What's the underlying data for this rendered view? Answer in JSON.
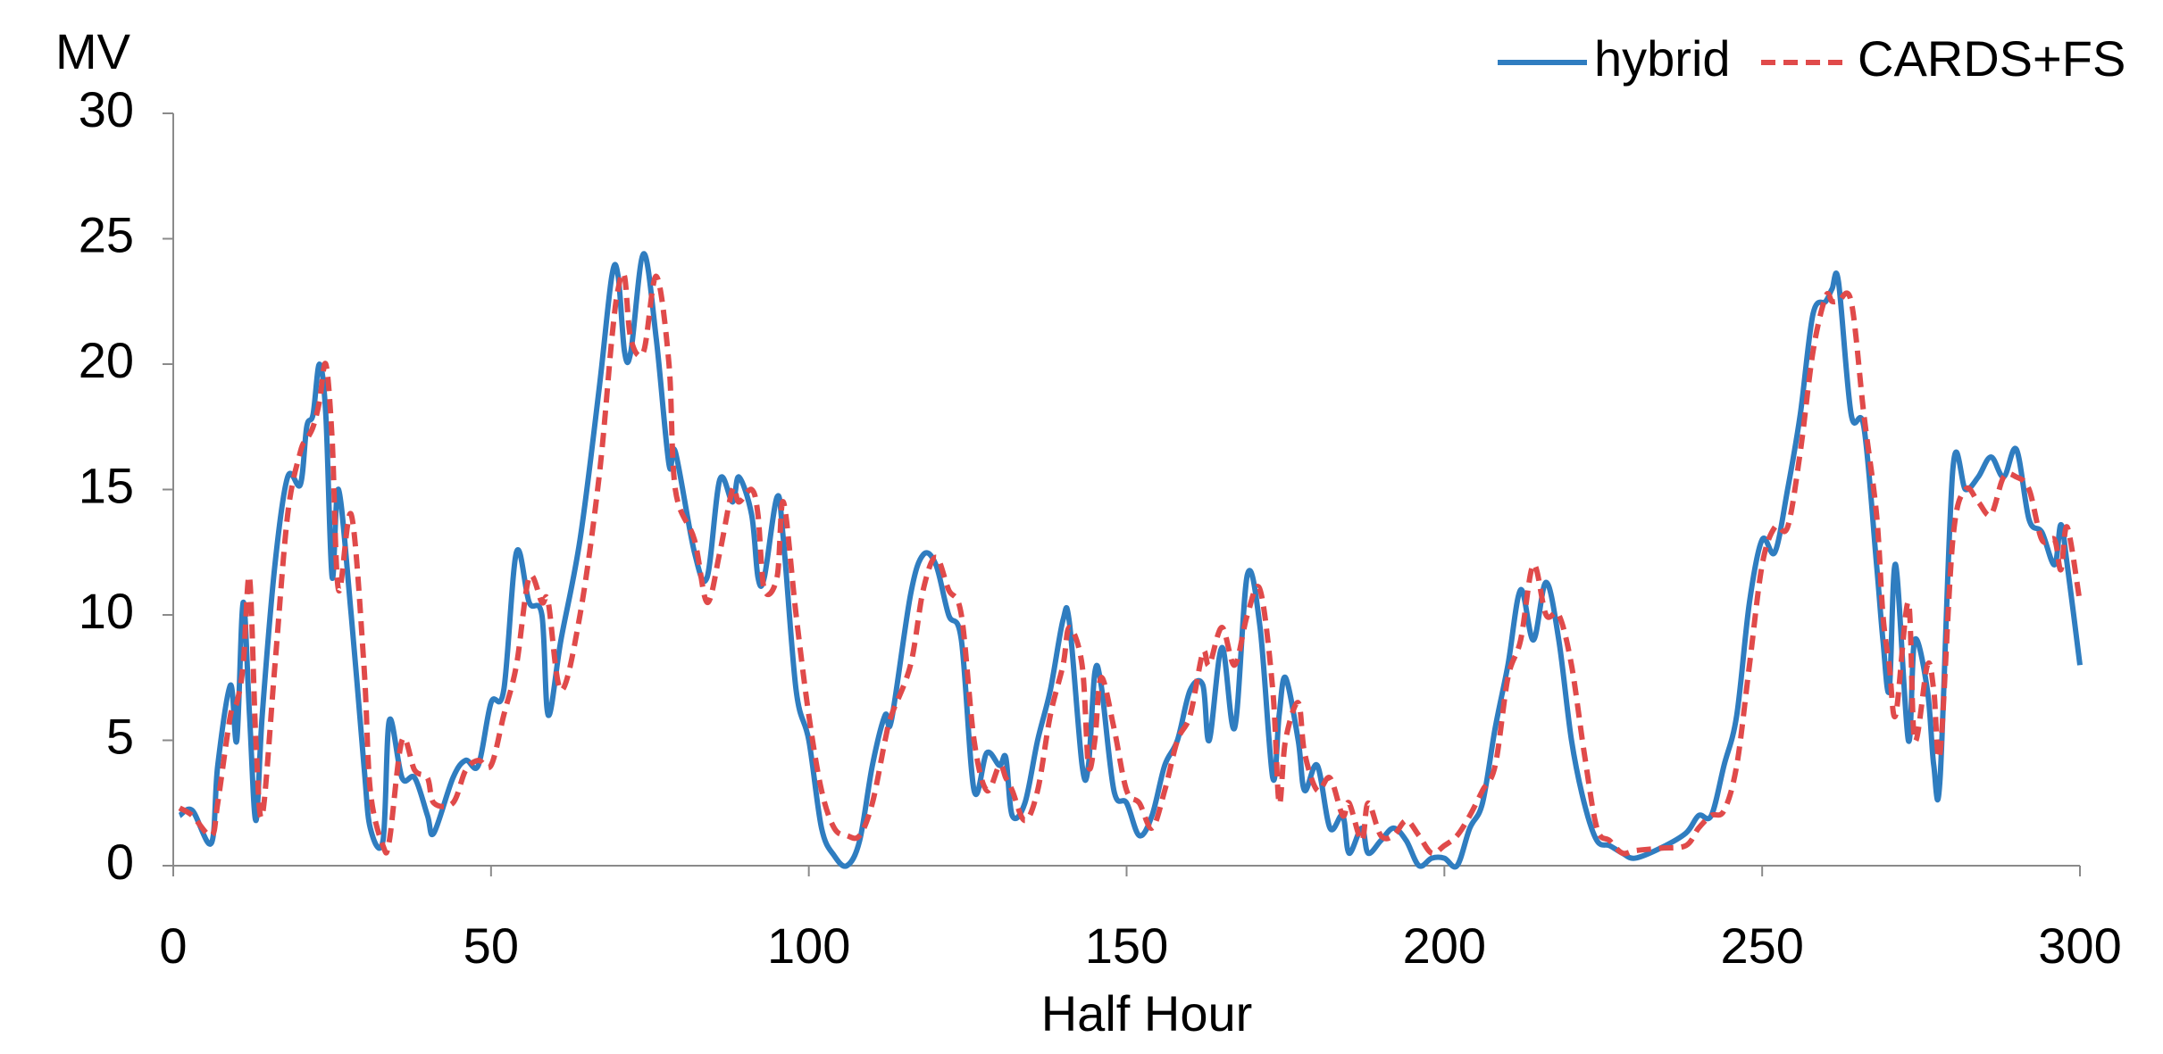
{
  "chart_data": {
    "type": "line",
    "y_label": "MV",
    "x_label": "Half Hour",
    "xlim": [
      0,
      300
    ],
    "xticks": [
      0,
      50,
      100,
      150,
      200,
      250,
      300
    ],
    "ylim": [
      0,
      30
    ],
    "yticks": [
      0,
      5,
      10,
      15,
      20,
      25,
      30
    ],
    "legend": "top-right",
    "x": [
      1,
      3,
      6,
      7,
      9,
      10,
      11,
      12,
      13,
      14,
      16,
      18,
      20,
      21,
      22,
      23,
      24,
      25,
      26,
      28,
      30,
      31,
      33,
      34,
      36,
      38,
      40,
      41,
      44,
      46,
      48,
      50,
      52,
      54,
      56,
      58,
      59,
      61,
      64,
      67,
      69,
      70,
      71,
      72,
      74,
      76,
      78,
      79,
      82,
      84,
      86,
      88,
      89,
      91,
      92,
      93,
      95,
      96,
      98,
      100,
      102,
      104,
      106,
      108,
      110,
      112,
      113,
      116,
      118,
      120,
      122,
      124,
      126,
      128,
      130,
      131,
      132,
      134,
      136,
      138,
      140,
      141,
      143,
      144,
      145,
      146,
      148,
      150,
      152,
      154,
      156,
      158,
      160,
      162,
      163,
      165,
      167,
      169,
      171,
      173,
      174,
      175,
      177,
      178,
      180,
      182,
      184,
      185,
      187,
      188,
      190,
      192,
      194,
      196,
      198,
      200,
      202,
      204,
      206,
      208,
      210,
      212,
      214,
      216,
      218,
      220,
      222,
      224,
      226,
      228,
      230,
      234,
      238,
      240,
      242,
      244,
      246,
      248,
      250,
      252,
      254,
      256,
      258,
      260,
      261,
      262,
      264,
      266,
      268,
      269,
      270,
      271,
      273,
      274,
      276,
      277,
      278,
      280,
      282,
      284,
      286,
      288,
      290,
      292,
      294,
      296,
      297,
      298,
      300
    ],
    "series": [
      {
        "name": "hybrid",
        "color": "#2f7dc0",
        "dashed": false,
        "values": [
          2,
          2.2,
          0.9,
          4,
          7.2,
          5,
          10.5,
          6,
          1.8,
          6,
          12,
          15.5,
          15.2,
          17.5,
          18,
          20,
          18,
          11.5,
          15,
          10,
          4,
          1.5,
          1,
          5.8,
          3.5,
          3.5,
          2,
          1.3,
          3.5,
          4.2,
          4,
          6.5,
          7,
          12.5,
          10.5,
          10,
          6,
          9,
          13,
          19,
          23.5,
          23.5,
          20.5,
          20.5,
          24.4,
          21,
          16,
          16.5,
          12.5,
          11.5,
          15.4,
          14.5,
          15.5,
          14,
          11.5,
          11.5,
          14.7,
          13,
          7,
          5,
          1.5,
          0.4,
          0,
          1,
          4,
          6,
          5.8,
          10.8,
          12.4,
          12,
          10,
          9,
          3,
          4.5,
          4,
          4.3,
          2,
          2.5,
          5,
          7,
          9.8,
          9.7,
          4,
          4,
          7.7,
          7.2,
          3,
          2.5,
          1.2,
          2,
          4,
          5,
          7,
          7.2,
          5,
          8.7,
          5.5,
          11.6,
          9.5,
          3.5,
          6,
          7.5,
          5,
          3,
          4,
          1.5,
          2,
          0.5,
          1.5,
          0.5,
          1,
          1.5,
          1,
          0,
          0.3,
          0.3,
          0,
          1.5,
          2.5,
          5.5,
          8,
          11,
          9,
          11.3,
          9,
          5,
          2.5,
          1,
          0.8,
          0.5,
          0.3,
          0.7,
          1.3,
          2,
          2,
          4,
          6,
          10.5,
          13,
          12.5,
          15,
          18,
          22,
          22.5,
          23,
          23.3,
          18,
          17.5,
          12,
          9,
          7,
          12,
          5,
          9,
          7,
          4,
          3.5,
          15.8,
          15,
          15.5,
          16.3,
          15.5,
          16.6,
          13.8,
          13.3,
          12,
          13.6,
          12,
          8
        ]
      },
      {
        "name": "CARDS+FS",
        "color": "#e04a4a",
        "dashed": true,
        "values": [
          2.3,
          2,
          1.2,
          2.5,
          6,
          6.5,
          8,
          11.5,
          5,
          2,
          8,
          14,
          16.5,
          17,
          17.5,
          18.5,
          20,
          17,
          11,
          14,
          8,
          3,
          0.8,
          1,
          5,
          3.8,
          3.5,
          2.5,
          2.5,
          3.8,
          4.2,
          4,
          6,
          8,
          11.5,
          10.5,
          10.5,
          7,
          10,
          15.5,
          21,
          23,
          23.5,
          21,
          20.5,
          23.5,
          20,
          15,
          13,
          10.5,
          12.5,
          15,
          14.5,
          15,
          14,
          11,
          11.5,
          14.5,
          10,
          6,
          3,
          1.5,
          1.2,
          1.2,
          2.5,
          5,
          6,
          8,
          11,
          12.3,
          11,
          10,
          5,
          3,
          4,
          3.5,
          3,
          1.8,
          3,
          6,
          8,
          9.5,
          8,
          4,
          5,
          7.5,
          5.5,
          3,
          2.5,
          1.5,
          3,
          5,
          6,
          8.5,
          8,
          9.5,
          8,
          10,
          11,
          7,
          2.5,
          5,
          6.5,
          4.5,
          3,
          3.5,
          2,
          2.5,
          1,
          2.5,
          1.2,
          1.2,
          1.8,
          1.2,
          0.5,
          0.8,
          1.2,
          2,
          3,
          4,
          7.5,
          9,
          12,
          10,
          10,
          8,
          4.5,
          1.5,
          1,
          0.5,
          0.6,
          0.7,
          0.8,
          1.5,
          2,
          2.2,
          4,
          8,
          12,
          13.5,
          13.5,
          16.5,
          20.5,
          22.7,
          22.5,
          22.5,
          22.5,
          18,
          14,
          10,
          8,
          6,
          10.5,
          5,
          8,
          7,
          4.5,
          13,
          15,
          14.5,
          14,
          15.5,
          15.5,
          15,
          13,
          13,
          11.8,
          13.5,
          10.5
        ]
      }
    ]
  }
}
